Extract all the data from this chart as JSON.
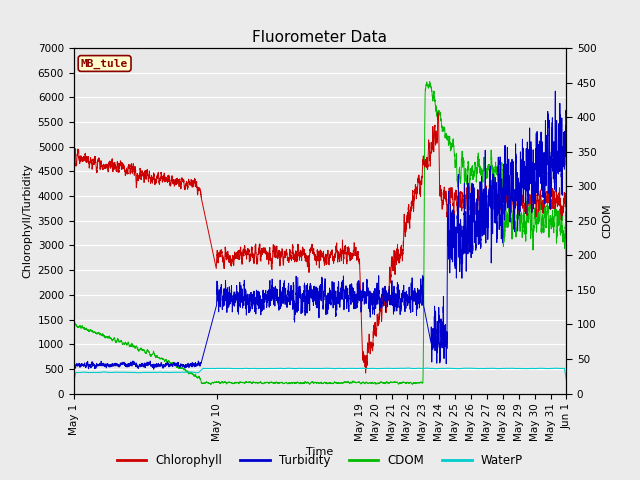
{
  "title": "Fluorometer Data",
  "xlabel": "Time",
  "ylabel_left": "Chlorophyll/Turbidity",
  "ylabel_right": "CDOM",
  "ylim_left": [
    0,
    7000
  ],
  "ylim_right": [
    0,
    500
  ],
  "bg_color": "#ebebeb",
  "axes_bg_color": "#e8e8e8",
  "title_fontsize": 11,
  "label_fontsize": 8,
  "tick_fontsize": 7.5,
  "station_label": "MB_tule",
  "station_box_facecolor": "#ffffcc",
  "station_box_edgecolor": "#8B0000",
  "colors": {
    "Chlorophyll": "#cc0000",
    "Turbidity": "#0000cc",
    "CDOM": "#00bb00",
    "WaterP": "#00cccc"
  },
  "xtick_positions": [
    1,
    10,
    19,
    20,
    21,
    22,
    23,
    24,
    25,
    26,
    27,
    28,
    29,
    30,
    31,
    32
  ],
  "xtick_labels": [
    "May 1",
    "May 10",
    "May 19",
    "May 20",
    "May 21",
    "May 22",
    "May 23",
    "May 24",
    "May 25",
    "May 26",
    "May 27",
    "May 28",
    "May 29",
    "May 30",
    "May 31",
    "Jun 1"
  ]
}
